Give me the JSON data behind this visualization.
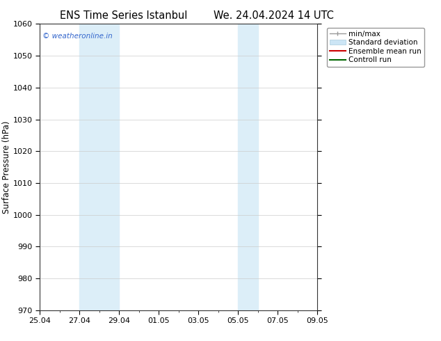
{
  "title_left": "ENS Time Series Istanbul",
  "title_right": "We. 24.04.2024 14 UTC",
  "ylabel": "Surface Pressure (hPa)",
  "ylim": [
    970,
    1060
  ],
  "ytick_interval": 10,
  "xtick_labels": [
    "25.04",
    "27.04",
    "29.04",
    "01.05",
    "03.05",
    "05.05",
    "07.05",
    "09.05"
  ],
  "xtick_positions": [
    0,
    2,
    4,
    6,
    8,
    10,
    12,
    14
  ],
  "watermark": "© weatheronline.in",
  "watermark_color": "#3366cc",
  "shaded_bands": [
    {
      "x_start": 2,
      "x_end": 4
    },
    {
      "x_start": 10,
      "x_end": 11
    }
  ],
  "shaded_color": "#dceef8",
  "legend_entries": [
    {
      "label": "min/max",
      "color": "#aaaaaa",
      "lw": 1.0
    },
    {
      "label": "Standard deviation",
      "color": "#cce5f5",
      "lw": 8
    },
    {
      "label": "Ensemble mean run",
      "color": "#cc0000",
      "lw": 1.5
    },
    {
      "label": "Controll run",
      "color": "#006600",
      "lw": 1.5
    }
  ],
  "bg_color": "#ffffff",
  "grid_color": "#cccccc",
  "title_fontsize": 10.5,
  "label_fontsize": 8.5,
  "tick_fontsize": 8,
  "legend_fontsize": 7.5
}
